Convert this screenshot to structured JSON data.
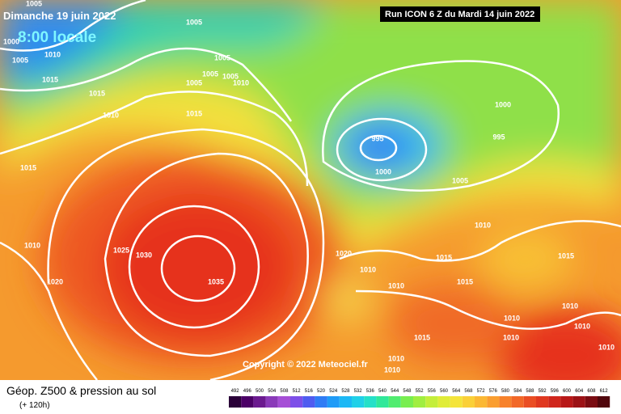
{
  "header": {
    "date": "Dimanche 19 juin 2022",
    "time": "8:00 locale",
    "run": "Run ICON 6 Z du Mardi 14 juin 2022"
  },
  "copyright": "Copyright © 2022 Meteociel.fr",
  "footer": {
    "title": "Géop. Z500 & pression au sol",
    "subtitle": "(+ 120h)"
  },
  "scale": {
    "labels": [
      492,
      496,
      500,
      504,
      508,
      512,
      516,
      520,
      524,
      528,
      532,
      536,
      540,
      544,
      548,
      552,
      556,
      560,
      564,
      568,
      572,
      576,
      580,
      584,
      588,
      592,
      596,
      600,
      604,
      608,
      612
    ],
    "colors": [
      "#2a0038",
      "#4b0066",
      "#6b1a8f",
      "#8a3ab9",
      "#a64fd6",
      "#7d4fe8",
      "#4f5cf0",
      "#2f7cf5",
      "#1f9bf7",
      "#1cb8f5",
      "#20d0e8",
      "#25e0c8",
      "#30e89a",
      "#50ec70",
      "#78ee50",
      "#a0ee40",
      "#c4ee3a",
      "#e0ec38",
      "#f4e43a",
      "#fad038",
      "#fbb834",
      "#fa9e30",
      "#f7822c",
      "#f26828",
      "#ea4e24",
      "#e03820",
      "#d0261c",
      "#b81818",
      "#9c1216",
      "#7a0c12",
      "#50060c"
    ]
  },
  "isobar_labels": [
    "1005",
    "1005",
    "1000",
    "1010",
    "1005",
    "1005",
    "1005",
    "1005",
    "1005",
    "1010",
    "1015",
    "1015",
    "1015",
    "1010",
    "1015",
    "995",
    "1000",
    "1000",
    "995",
    "1005",
    "1010",
    "1025",
    "1030",
    "1035",
    "1010",
    "1020",
    "1020",
    "1010",
    "1015",
    "1010",
    "1015",
    "1015",
    "1010",
    "1010",
    "1010",
    "1010",
    "1010",
    "1015",
    "1010",
    "1010"
  ]
}
